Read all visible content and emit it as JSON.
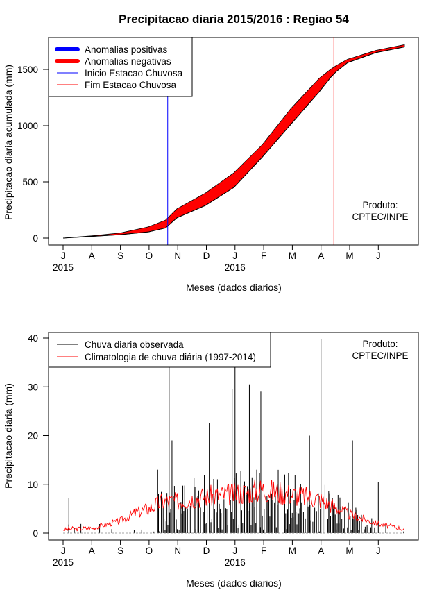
{
  "title": "Precipitacao diaria 2015/2016 : Regiao 54",
  "colors": {
    "positive": "#0000ff",
    "negative": "#ff0000",
    "start_line": "#0000ff",
    "end_line": "#ff0000",
    "observed": "#000000",
    "climatology": "#ff0000"
  },
  "chart_data": [
    {
      "type": "area",
      "ylabel": "Precipitacao diaria acumulada (mm)",
      "xlabel": "Meses (dados diarios)",
      "ylim": [
        0,
        1750
      ],
      "yticks": [
        0,
        500,
        1000,
        1500
      ],
      "months": [
        "J",
        "A",
        "S",
        "O",
        "N",
        "D",
        "J",
        "F",
        "M",
        "A",
        "M",
        "J"
      ],
      "years": [
        "2015",
        "2016"
      ],
      "legend": [
        "Anomalias positivas",
        "Anomalias negativas",
        "Inicio Estacao Chuvosa",
        "Fim Estacao Chuvosa"
      ],
      "product_label": [
        "Produto:",
        "CPTEC/INPE"
      ],
      "season_start_month": 3.65,
      "season_end_month": 9.45,
      "observed_cumulative": [
        [
          0,
          0
        ],
        [
          1,
          15
        ],
        [
          2,
          30
        ],
        [
          3,
          55
        ],
        [
          3.6,
          90
        ],
        [
          4,
          180
        ],
        [
          5,
          290
        ],
        [
          6,
          450
        ],
        [
          7,
          720
        ],
        [
          8,
          1010
        ],
        [
          9,
          1300
        ],
        [
          9.5,
          1460
        ],
        [
          10,
          1560
        ],
        [
          11,
          1650
        ],
        [
          12,
          1700
        ]
      ],
      "climatology_cumulative": [
        [
          0,
          0
        ],
        [
          1,
          20
        ],
        [
          2,
          45
        ],
        [
          3,
          100
        ],
        [
          3.6,
          160
        ],
        [
          4,
          260
        ],
        [
          5,
          400
        ],
        [
          6,
          580
        ],
        [
          7,
          830
        ],
        [
          8,
          1150
        ],
        [
          9,
          1420
        ],
        [
          9.5,
          1520
        ],
        [
          10,
          1590
        ],
        [
          11,
          1670
        ],
        [
          12,
          1720
        ]
      ]
    },
    {
      "type": "bar",
      "ylabel": "Precipitacao diaria (mm)",
      "xlabel": "Meses (dados diarios)",
      "ylim": [
        0,
        40
      ],
      "yticks": [
        0,
        10,
        20,
        30,
        40
      ],
      "months": [
        "J",
        "A",
        "S",
        "O",
        "N",
        "D",
        "J",
        "F",
        "M",
        "A",
        "M",
        "J"
      ],
      "years": [
        "2015",
        "2016"
      ],
      "legend": [
        "Chuva diaria observada",
        "Climatologia de chuva diária (1997-2014)"
      ],
      "product_label": [
        "Produto:",
        "CPTEC/INPE"
      ],
      "observed_peaks": [
        [
          0.2,
          7.2
        ],
        [
          3.3,
          13
        ],
        [
          3.7,
          34
        ],
        [
          3.8,
          19
        ],
        [
          5.1,
          22.5
        ],
        [
          5.9,
          29.5
        ],
        [
          6,
          34
        ],
        [
          6.5,
          30.5
        ],
        [
          6.9,
          29
        ],
        [
          8.6,
          20
        ],
        [
          9,
          39.8
        ],
        [
          10.1,
          19
        ],
        [
          11,
          10.5
        ]
      ],
      "climatology_curve": [
        [
          0,
          0.8
        ],
        [
          1,
          1.0
        ],
        [
          2,
          2.5
        ],
        [
          2.5,
          4
        ],
        [
          3,
          5
        ],
        [
          3.5,
          6.5
        ],
        [
          4,
          6.5
        ],
        [
          5,
          7.5
        ],
        [
          6,
          8
        ],
        [
          7,
          9
        ],
        [
          8,
          8
        ],
        [
          9,
          7
        ],
        [
          10,
          4
        ],
        [
          11,
          2
        ],
        [
          12,
          0.8
        ]
      ]
    }
  ]
}
